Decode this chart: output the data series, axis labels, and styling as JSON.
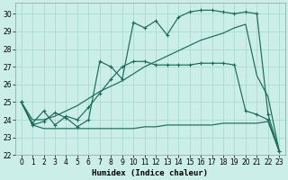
{
  "xlabel": "Humidex (Indice chaleur)",
  "bg_color": "#cceee8",
  "grid_color": "#aaddcc",
  "line_color": "#1a6b5a",
  "xlim": [
    -0.5,
    23.5
  ],
  "ylim": [
    22,
    30.6
  ],
  "xticks": [
    0,
    1,
    2,
    3,
    4,
    5,
    6,
    7,
    8,
    9,
    10,
    11,
    12,
    13,
    14,
    15,
    16,
    17,
    18,
    19,
    20,
    21,
    22,
    23
  ],
  "yticks": [
    22,
    23,
    24,
    25,
    26,
    27,
    28,
    29,
    30
  ],
  "s1_x": [
    0,
    1,
    2,
    3,
    4,
    5,
    6,
    7,
    8,
    9,
    10,
    11,
    12,
    13,
    14,
    15,
    16,
    17,
    18,
    19,
    20,
    21,
    22,
    23
  ],
  "s1_y": [
    25.0,
    23.7,
    23.9,
    24.4,
    24.1,
    23.6,
    24.0,
    27.3,
    27.0,
    26.3,
    29.5,
    29.2,
    29.6,
    28.8,
    29.8,
    30.1,
    30.2,
    30.2,
    30.1,
    30.0,
    30.1,
    30.0,
    24.3,
    22.2
  ],
  "s2_x": [
    0,
    1,
    2,
    3,
    4,
    5,
    6,
    7,
    8,
    9,
    10,
    11,
    12,
    13,
    14,
    15,
    16,
    17,
    18,
    19,
    20,
    21,
    22,
    23
  ],
  "s2_y": [
    25.0,
    24.0,
    24.0,
    24.2,
    24.5,
    24.8,
    25.2,
    25.6,
    25.9,
    26.2,
    26.6,
    27.0,
    27.3,
    27.6,
    27.9,
    28.2,
    28.5,
    28.7,
    28.9,
    29.2,
    29.4,
    26.5,
    25.3,
    22.2
  ],
  "s3_x": [
    0,
    1,
    2,
    3,
    4,
    5,
    6,
    7,
    8,
    9,
    10,
    11,
    12,
    13,
    14,
    15,
    16,
    17,
    18,
    19,
    20,
    21,
    22,
    23
  ],
  "s3_y": [
    25.0,
    23.8,
    24.5,
    23.7,
    24.2,
    24.0,
    24.7,
    25.5,
    26.3,
    27.0,
    27.3,
    27.3,
    27.1,
    27.1,
    27.1,
    27.1,
    27.2,
    27.2,
    27.2,
    27.1,
    24.5,
    24.3,
    24.0,
    22.2
  ],
  "s4_x": [
    0,
    1,
    2,
    3,
    4,
    5,
    6,
    7,
    8,
    9,
    10,
    11,
    12,
    13,
    14,
    15,
    16,
    17,
    18,
    19,
    20,
    21,
    22,
    23
  ],
  "s4_y": [
    25.0,
    23.7,
    23.5,
    23.5,
    23.5,
    23.5,
    23.5,
    23.5,
    23.5,
    23.5,
    23.5,
    23.6,
    23.6,
    23.7,
    23.7,
    23.7,
    23.7,
    23.7,
    23.8,
    23.8,
    23.8,
    23.8,
    23.9,
    22.2
  ]
}
